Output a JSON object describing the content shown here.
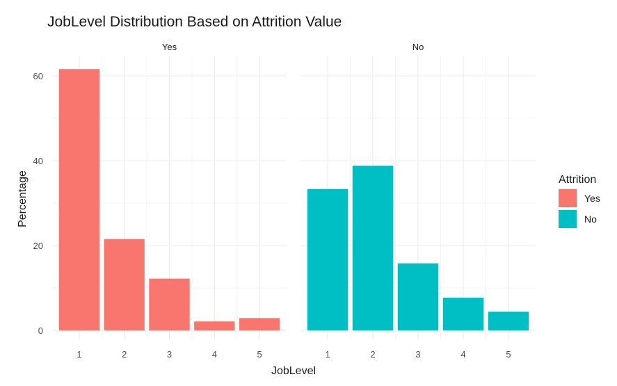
{
  "chart_data": {
    "type": "bar",
    "title": "JobLevel Distribution Based on Attrition Value",
    "xlabel": "JobLevel",
    "ylabel": "Percentage",
    "categories": [
      "1",
      "2",
      "3",
      "4",
      "5"
    ],
    "ylim": [
      0,
      63
    ],
    "yticks": [
      0,
      20,
      40,
      60
    ],
    "yticks_labels": [
      "0",
      "20",
      "40",
      "60"
    ],
    "grid": true,
    "facets": [
      {
        "name": "Yes",
        "color": "#F8766D",
        "values": [
          61.6,
          21.5,
          12.2,
          2.1,
          2.9
        ]
      },
      {
        "name": "No",
        "color": "#00BFC4",
        "values": [
          33.3,
          38.8,
          15.8,
          7.7,
          4.4
        ]
      }
    ],
    "legend": {
      "title": "Attrition",
      "position": "right",
      "entries": [
        {
          "label": "Yes",
          "color": "#F8766D"
        },
        {
          "label": "No",
          "color": "#00BFC4"
        }
      ]
    }
  }
}
